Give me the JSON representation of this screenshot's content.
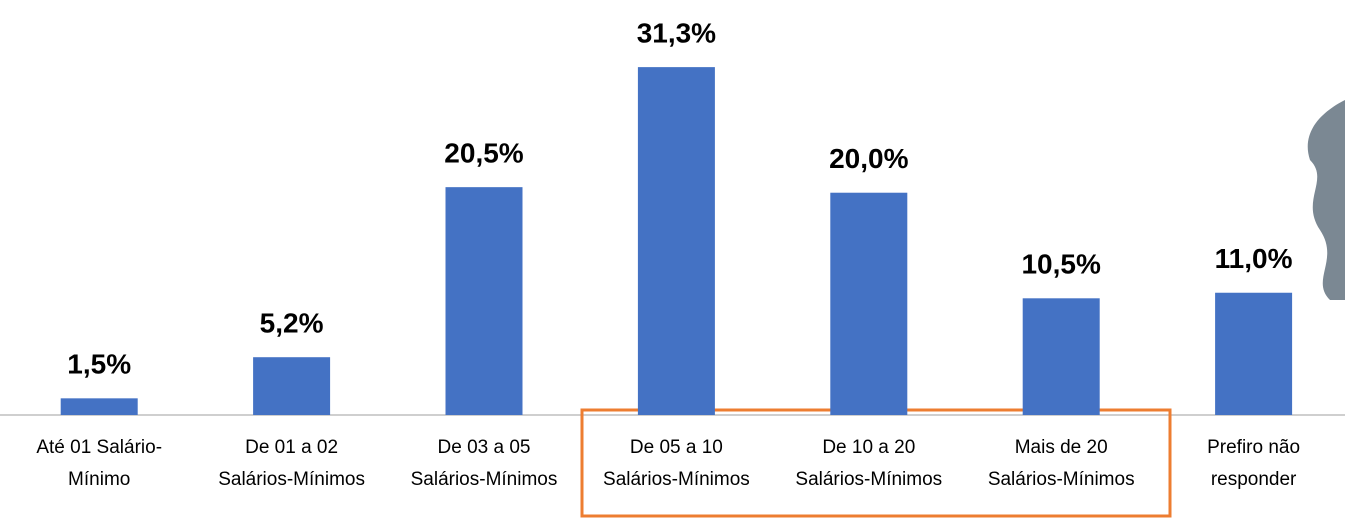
{
  "chart_data": {
    "type": "bar",
    "categories": [
      [
        "Até 01 Salário-",
        "Mínimo"
      ],
      [
        "De 01 a 02",
        "Salários-Mínimos"
      ],
      [
        "De 03 a 05",
        "Salários-Mínimos"
      ],
      [
        "De 05 a 10",
        "Salários-Mínimos"
      ],
      [
        "De 10 a 20",
        "Salários-Mínimos"
      ],
      [
        "Mais de 20",
        "Salários-Mínimos"
      ],
      [
        "Prefiro não",
        "responder"
      ]
    ],
    "values": [
      1.5,
      5.2,
      20.5,
      31.3,
      20.0,
      10.5,
      11.0
    ],
    "value_labels": [
      "1,5%",
      "5,2%",
      "20,5%",
      "31,3%",
      "20,0%",
      "10,5%",
      "11,0%"
    ],
    "color": "#4472c4",
    "ylim": [
      0,
      35
    ]
  }
}
